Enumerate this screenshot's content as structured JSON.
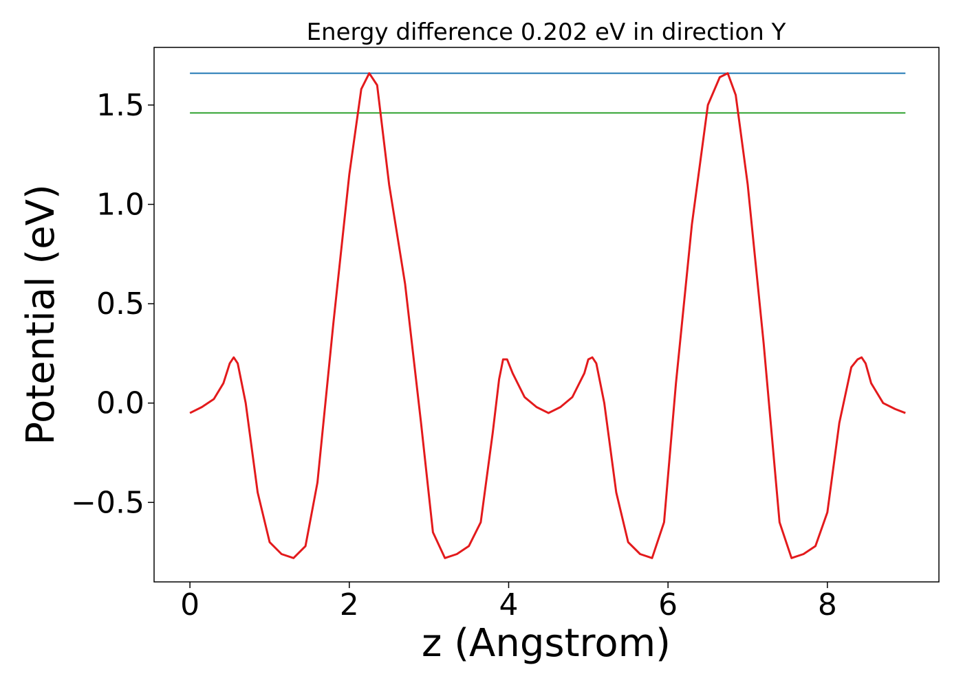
{
  "chart_data": {
    "type": "line",
    "title": "Energy difference 0.202 eV in direction Y",
    "xlabel": "z (Angstrom)",
    "ylabel": "Potential (eV)",
    "xlim": [
      -0.45,
      9.4
    ],
    "ylim": [
      -0.9,
      1.79
    ],
    "xticks": [
      0,
      2,
      4,
      6,
      8
    ],
    "xtick_labels": [
      "0",
      "2",
      "4",
      "6",
      "8"
    ],
    "yticks": [
      -0.5,
      0.0,
      0.5,
      1.0,
      1.5
    ],
    "ytick_labels": [
      "−0.5",
      "0.0",
      "0.5",
      "1.0",
      "1.5"
    ],
    "grid": false,
    "series": [
      {
        "color": "#1f77b4",
        "x": [
          0,
          8.98
        ],
        "y": [
          1.66,
          1.66
        ]
      },
      {
        "color": "#2ca02c",
        "x": [
          0,
          8.98
        ],
        "y": [
          1.46,
          1.46
        ]
      },
      {
        "color": "#e31a1c",
        "x": [
          0.0,
          0.15,
          0.3,
          0.42,
          0.5,
          0.55,
          0.6,
          0.7,
          0.85,
          1.0,
          1.15,
          1.3,
          1.45,
          1.6,
          1.8,
          2.0,
          2.15,
          2.25,
          2.35,
          2.5,
          2.7,
          2.9,
          3.05,
          3.2,
          3.35,
          3.5,
          3.65,
          3.8,
          3.88,
          3.93,
          3.98,
          4.05,
          4.2,
          4.35,
          4.5,
          4.65,
          4.8,
          4.95,
          5.0,
          5.05,
          5.1,
          5.2,
          5.35,
          5.5,
          5.65,
          5.8,
          5.95,
          6.1,
          6.3,
          6.5,
          6.65,
          6.75,
          6.85,
          7.0,
          7.2,
          7.4,
          7.55,
          7.7,
          7.85,
          8.0,
          8.15,
          8.3,
          8.38,
          8.43,
          8.48,
          8.55,
          8.7,
          8.85,
          8.98
        ],
        "y": [
          -0.05,
          -0.02,
          0.02,
          0.1,
          0.2,
          0.23,
          0.2,
          0.0,
          -0.45,
          -0.7,
          -0.76,
          -0.78,
          -0.72,
          -0.4,
          0.4,
          1.15,
          1.58,
          1.66,
          1.6,
          1.1,
          0.6,
          -0.1,
          -0.65,
          -0.78,
          -0.76,
          -0.72,
          -0.6,
          -0.15,
          0.12,
          0.22,
          0.22,
          0.15,
          0.03,
          -0.02,
          -0.05,
          -0.02,
          0.03,
          0.15,
          0.22,
          0.23,
          0.2,
          0.0,
          -0.45,
          -0.7,
          -0.76,
          -0.78,
          -0.6,
          0.1,
          0.9,
          1.5,
          1.64,
          1.66,
          1.55,
          1.1,
          0.3,
          -0.6,
          -0.78,
          -0.76,
          -0.72,
          -0.55,
          -0.1,
          0.18,
          0.22,
          0.23,
          0.2,
          0.1,
          0.0,
          -0.03,
          -0.05
        ]
      }
    ]
  }
}
